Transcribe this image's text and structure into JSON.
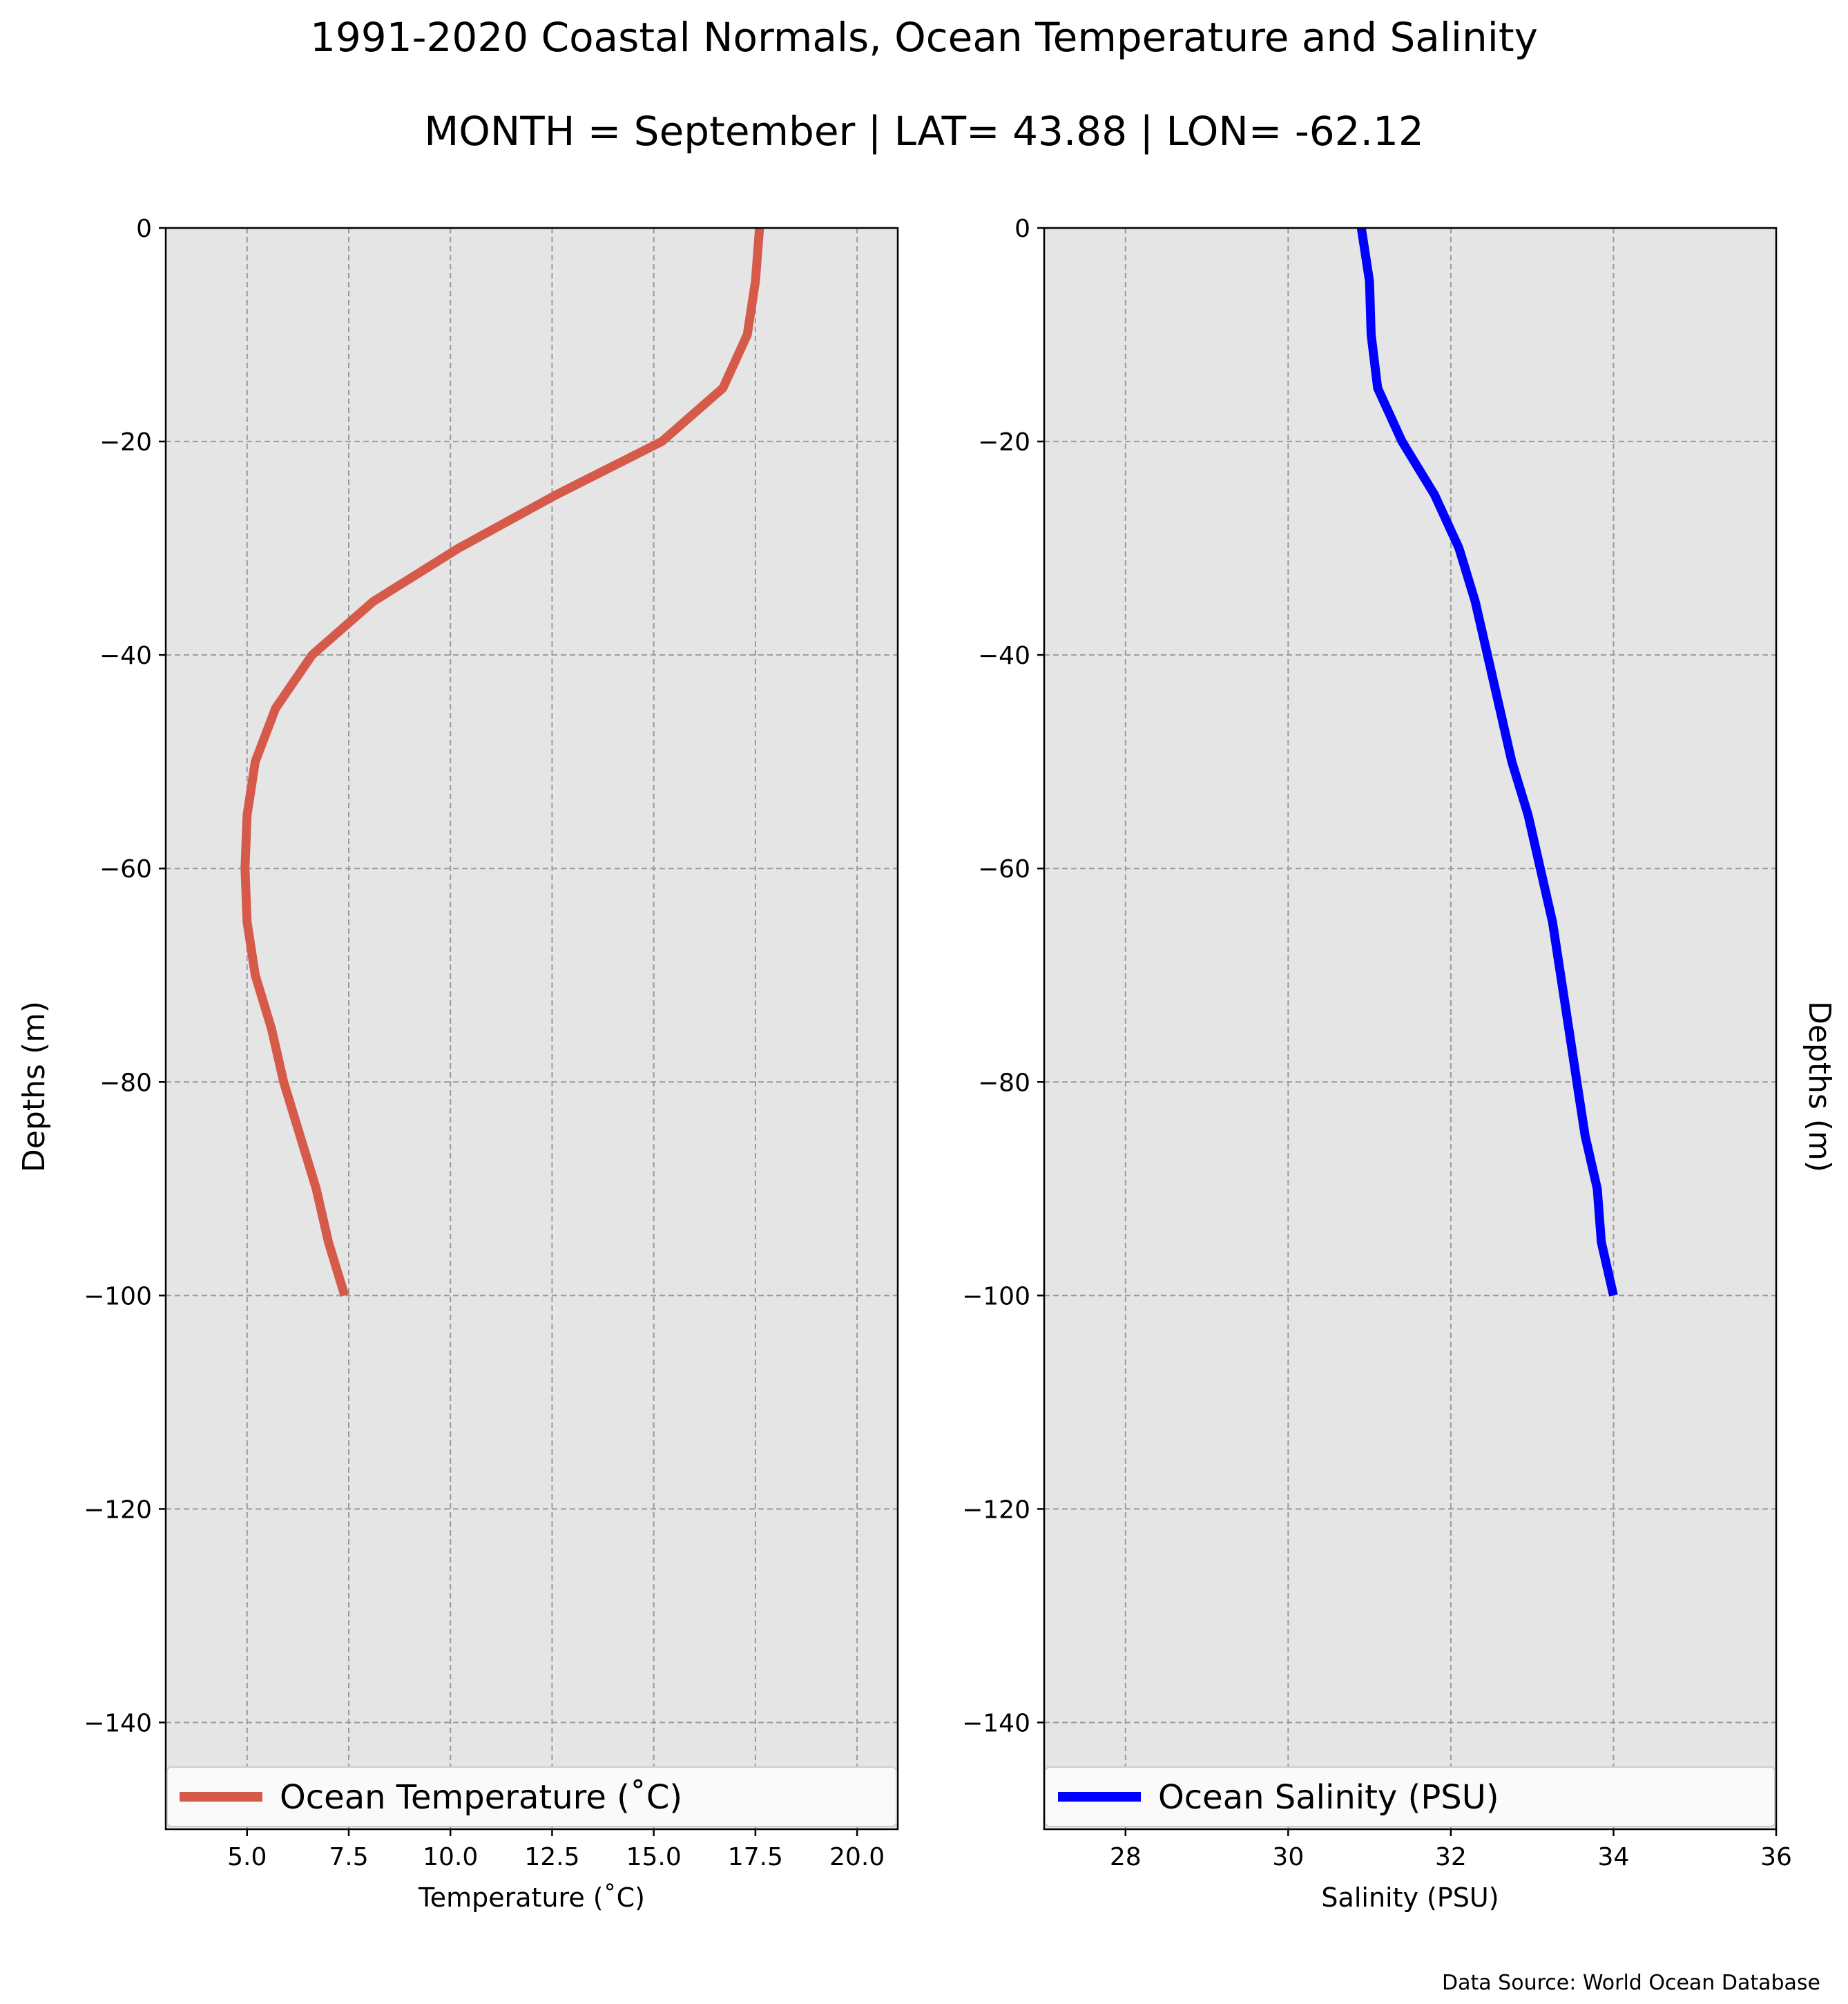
{
  "figure": {
    "title_line1": "1991-2020 Coastal Normals, Ocean Temperature and Salinity",
    "title_line2": "MONTH = September | LAT= 43.88 | LON= -62.12",
    "source": "Data Source: World Ocean Database"
  },
  "colors": {
    "background": "#e5e5e5",
    "temperature_line": "#d65a4a",
    "salinity_line": "#0000ff",
    "grid": "#9a9a9a"
  },
  "chart_data": [
    {
      "type": "line",
      "xlabel": "Temperature ($^\\circ$C)",
      "xlabel_display": "Temperature (˚C)",
      "ylabel": "Depths (m)",
      "xlim": [
        3,
        21
      ],
      "ylim": [
        -150,
        0
      ],
      "x_ticks": [
        5.0,
        7.5,
        10.0,
        12.5,
        15.0,
        17.5,
        20.0
      ],
      "x_tick_labels": [
        "5.0",
        "7.5",
        "10.0",
        "12.5",
        "15.0",
        "17.5",
        "20.0"
      ],
      "y_ticks": [
        0,
        -20,
        -40,
        -60,
        -80,
        -100,
        -120,
        -140
      ],
      "y_tick_labels": [
        "0",
        "−20",
        "−40",
        "−60",
        "−80",
        "−100",
        "−120",
        "−140"
      ],
      "grid": true,
      "legend_position": "bottom",
      "series": [
        {
          "name": "Ocean Temperature (˚C)",
          "color": "#d65a4a",
          "x": [
            17.6,
            17.5,
            17.3,
            16.7,
            15.2,
            12.6,
            10.2,
            8.1,
            6.6,
            5.7,
            5.2,
            5.0,
            4.95,
            5.0,
            5.2,
            5.6,
            5.9,
            6.3,
            6.7,
            7.0,
            7.4
          ],
          "y": [
            0,
            -5,
            -10,
            -15,
            -20,
            -25,
            -30,
            -35,
            -40,
            -45,
            -50,
            -55,
            -60,
            -65,
            -70,
            -75,
            -80,
            -85,
            -90,
            -95,
            -100
          ]
        }
      ]
    },
    {
      "type": "line",
      "xlabel": "Salinity (PSU)",
      "ylabel": "Depths (m)",
      "xlim": [
        27,
        36
      ],
      "ylim": [
        -150,
        0
      ],
      "x_ticks": [
        28,
        30,
        32,
        34,
        36
      ],
      "x_tick_labels": [
        "28",
        "30",
        "32",
        "34",
        "36"
      ],
      "y_ticks": [
        0,
        -20,
        -40,
        -60,
        -80,
        -100,
        -120,
        -140
      ],
      "y_tick_labels": [
        "0",
        "−20",
        "−40",
        "−60",
        "−80",
        "−100",
        "−120",
        "−140"
      ],
      "grid": true,
      "legend_position": "bottom",
      "series": [
        {
          "name": "Ocean Salinity (PSU)",
          "color": "#0000ff",
          "x": [
            30.9,
            31.0,
            31.02,
            31.1,
            31.4,
            31.8,
            32.1,
            32.3,
            32.45,
            32.6,
            32.75,
            32.95,
            33.1,
            33.25,
            33.35,
            33.45,
            33.55,
            33.65,
            33.8,
            33.85,
            34.0
          ],
          "y": [
            0,
            -5,
            -10,
            -15,
            -20,
            -25,
            -30,
            -35,
            -40,
            -45,
            -50,
            -55,
            -60,
            -65,
            -70,
            -75,
            -80,
            -85,
            -90,
            -95,
            -100
          ]
        }
      ]
    }
  ]
}
